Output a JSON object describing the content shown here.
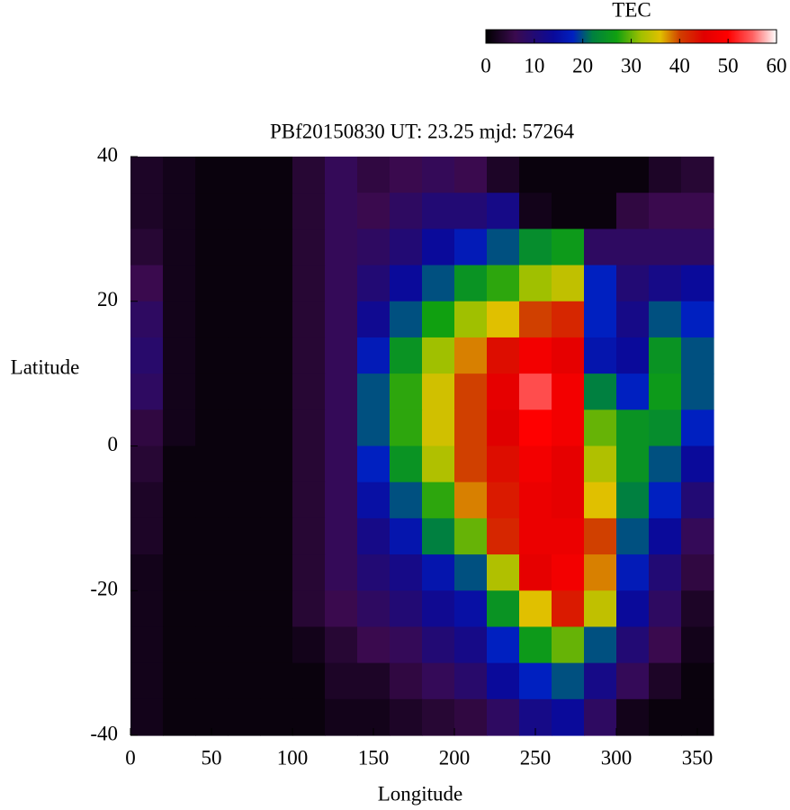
{
  "chart_data": {
    "type": "heatmap",
    "title": "PBf20150830  UT: 23.25  mjd: 57264",
    "xlabel": "Longitude",
    "ylabel": "Latitude",
    "xlim": [
      0,
      360
    ],
    "ylim": [
      -40,
      40
    ],
    "xticks": [
      0,
      50,
      100,
      150,
      200,
      250,
      300,
      350
    ],
    "yticks": [
      -40,
      -20,
      0,
      20,
      40
    ],
    "x": [
      10,
      30,
      50,
      70,
      90,
      110,
      130,
      150,
      170,
      190,
      210,
      230,
      250,
      270,
      290,
      310,
      330,
      350
    ],
    "y": [
      37.5,
      32.5,
      27.5,
      22.5,
      17.5,
      12.5,
      7.5,
      2.5,
      -2.5,
      -7.5,
      -12.5,
      -17.5,
      -22.5,
      -27.5,
      -32.5,
      -37.5
    ],
    "z": [
      [
        3,
        2,
        1,
        1,
        1,
        4,
        7,
        5,
        6,
        7,
        6,
        3,
        1,
        1,
        1,
        1,
        3,
        4
      ],
      [
        3,
        2,
        1,
        1,
        1,
        4,
        7,
        6,
        8,
        10,
        10,
        12,
        2,
        1,
        1,
        5,
        6,
        6
      ],
      [
        4,
        2,
        1,
        1,
        1,
        4,
        7,
        8,
        10,
        14,
        17,
        20,
        24,
        26,
        8,
        8,
        8,
        8
      ],
      [
        6,
        2,
        1,
        1,
        1,
        4,
        7,
        10,
        14,
        20,
        25,
        28,
        32,
        34,
        18,
        10,
        12,
        14
      ],
      [
        8,
        2,
        1,
        1,
        1,
        4,
        7,
        13,
        20,
        27,
        32,
        36,
        40,
        42,
        18,
        12,
        20,
        18
      ],
      [
        9,
        2,
        1,
        1,
        1,
        4,
        7,
        17,
        25,
        32,
        38,
        44,
        48,
        46,
        16,
        14,
        25,
        20
      ],
      [
        8,
        2,
        1,
        1,
        1,
        4,
        7,
        20,
        28,
        35,
        40,
        46,
        54,
        48,
        22,
        18,
        26,
        20
      ],
      [
        5,
        2,
        1,
        1,
        1,
        4,
        7,
        20,
        28,
        35,
        40,
        45,
        50,
        48,
        30,
        25,
        24,
        18
      ],
      [
        4,
        1,
        1,
        1,
        1,
        4,
        7,
        18,
        25,
        33,
        40,
        44,
        48,
        46,
        33,
        25,
        20,
        14
      ],
      [
        3,
        1,
        1,
        1,
        1,
        4,
        7,
        15,
        20,
        28,
        38,
        43,
        47,
        46,
        36,
        22,
        18,
        10
      ],
      [
        3,
        1,
        1,
        1,
        1,
        4,
        7,
        12,
        16,
        22,
        30,
        42,
        47,
        47,
        40,
        20,
        14,
        7
      ],
      [
        2,
        1,
        1,
        1,
        1,
        4,
        7,
        10,
        12,
        16,
        20,
        33,
        46,
        48,
        38,
        17,
        10,
        5
      ],
      [
        2,
        1,
        1,
        1,
        1,
        4,
        6,
        8,
        10,
        13,
        15,
        25,
        36,
        43,
        34,
        14,
        8,
        3
      ],
      [
        2,
        1,
        1,
        1,
        1,
        2,
        4,
        6,
        7,
        10,
        12,
        18,
        26,
        30,
        20,
        10,
        6,
        2
      ],
      [
        2,
        1,
        1,
        1,
        1,
        1,
        3,
        3,
        5,
        7,
        9,
        14,
        18,
        20,
        12,
        7,
        3,
        1
      ],
      [
        2,
        1,
        1,
        1,
        1,
        1,
        2,
        2,
        3,
        4,
        5,
        8,
        12,
        14,
        8,
        2,
        1,
        1
      ]
    ],
    "colorscale": [
      [
        0,
        "#000000"
      ],
      [
        6,
        "#3a0a4e"
      ],
      [
        14,
        "#0a0a9a"
      ],
      [
        18,
        "#0020c0"
      ],
      [
        22,
        "#008040"
      ],
      [
        27,
        "#10a010"
      ],
      [
        32,
        "#a0c000"
      ],
      [
        36,
        "#e0c000"
      ],
      [
        40,
        "#d04000"
      ],
      [
        45,
        "#e00000"
      ],
      [
        50,
        "#ff0000"
      ],
      [
        55,
        "#ff6060"
      ],
      [
        60,
        "#ffffff"
      ]
    ],
    "colorbar": {
      "title": "TEC",
      "lim": [
        0,
        60
      ],
      "ticks": [
        0,
        10,
        20,
        30,
        40,
        50,
        60
      ]
    }
  }
}
